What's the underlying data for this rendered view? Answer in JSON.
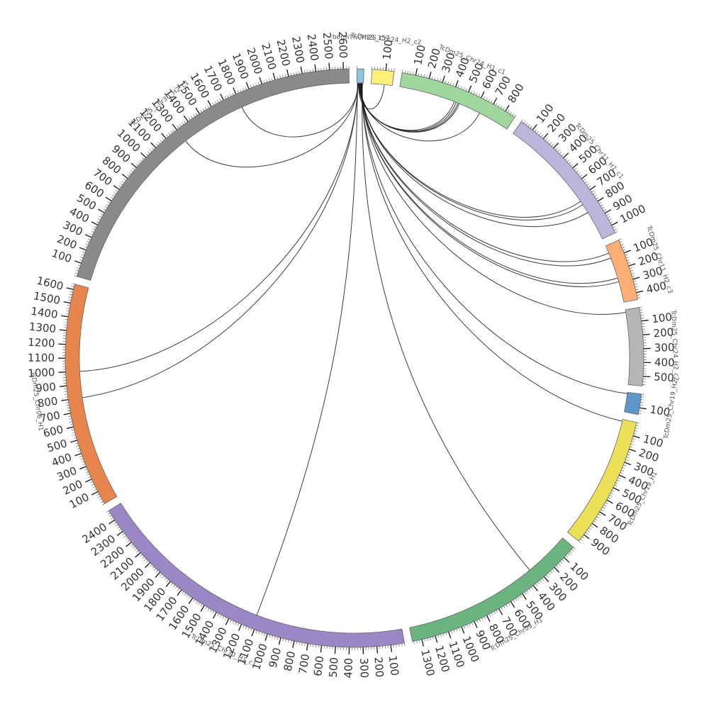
{
  "chart_data": {
    "type": "chord",
    "title": "",
    "segments": [
      {
        "name": "bermTnCH25_157",
        "length": 50,
        "color": "#8fc3de",
        "tick_step": 100,
        "label_step": 100
      },
      {
        "name": "TcDm25_Chr24_H2_c2",
        "length": 160,
        "color": "#fff07a",
        "tick_step": 20,
        "label_step": 100
      },
      {
        "name": "TcDm25_Chr24_H1_c1",
        "length": 880,
        "color": "#9ed69d",
        "tick_step": 20,
        "label_step": 100
      },
      {
        "name": "TcDm25_Chr11_H1_c1",
        "length": 1060,
        "color": "#bcb6dc",
        "tick_step": 20,
        "label_step": 100
      },
      {
        "name": "TcDm25_Chr11_H2_c3",
        "length": 450,
        "color": "#fdae74",
        "tick_step": 20,
        "label_step": 100
      },
      {
        "name": "TcDm25_Chr24_H2_c2",
        "length": 570,
        "color": "#b5b5b5",
        "tick_step": 20,
        "label_step": 100
      },
      {
        "name": "TcDm25_Chr19_H2",
        "length": 150,
        "color": "#5f97cb",
        "tick_step": 20,
        "label_step": 100
      },
      {
        "name": "TcDm25_Chr19_H1",
        "length": 960,
        "color": "#ebe057",
        "tick_step": 20,
        "label_step": 100
      },
      {
        "name": "TcDm25_Chr09_H1",
        "length": 1370,
        "color": "#6bb37f",
        "tick_step": 20,
        "label_step": 100
      },
      {
        "name": "TcDm25_Chr30_H1_c1",
        "length": 2480,
        "color": "#9b87c5",
        "tick_step": 20,
        "label_step": 100
      },
      {
        "name": "TcDm25_Chr06_H1",
        "length": 1640,
        "color": "#e8854f",
        "tick_step": 20,
        "label_step": 100
      },
      {
        "name": "TcDm25_Chr30_H2_c1",
        "length": 2640,
        "color": "#8a8a8a",
        "tick_step": 20,
        "label_step": 100
      }
    ],
    "links": [
      {
        "from": [
          0,
          15
        ],
        "to": [
          2,
          430
        ]
      },
      {
        "from": [
          0,
          18
        ],
        "to": [
          2,
          445
        ]
      },
      {
        "from": [
          0,
          20
        ],
        "to": [
          2,
          460
        ]
      },
      {
        "from": [
          0,
          22
        ],
        "to": [
          2,
          470
        ]
      },
      {
        "from": [
          0,
          26
        ],
        "to": [
          2,
          640
        ]
      },
      {
        "from": [
          0,
          12
        ],
        "to": [
          1,
          100
        ]
      },
      {
        "from": [
          0,
          28
        ],
        "to": [
          3,
          730
        ]
      },
      {
        "from": [
          0,
          30
        ],
        "to": [
          3,
          760
        ]
      },
      {
        "from": [
          0,
          32
        ],
        "to": [
          3,
          830
        ]
      },
      {
        "from": [
          0,
          33
        ],
        "to": [
          4,
          60
        ]
      },
      {
        "from": [
          0,
          34
        ],
        "to": [
          4,
          100
        ]
      },
      {
        "from": [
          0,
          35
        ],
        "to": [
          4,
          260
        ]
      },
      {
        "from": [
          0,
          36
        ],
        "to": [
          4,
          290
        ]
      },
      {
        "from": [
          0,
          38
        ],
        "to": [
          5,
          20
        ]
      },
      {
        "from": [
          0,
          40
        ],
        "to": [
          6,
          10
        ]
      },
      {
        "from": [
          0,
          41
        ],
        "to": [
          7,
          15
        ]
      },
      {
        "from": [
          0,
          42
        ],
        "to": [
          8,
          350
        ]
      },
      {
        "from": [
          0,
          5
        ],
        "to": [
          9,
          1120
        ]
      },
      {
        "from": [
          0,
          6
        ],
        "to": [
          10,
          800
        ]
      },
      {
        "from": [
          0,
          7
        ],
        "to": [
          10,
          1000
        ]
      },
      {
        "from": [
          0,
          8
        ],
        "to": [
          11,
          1300
        ]
      },
      {
        "from": [
          0,
          9
        ],
        "to": [
          11,
          1800
        ]
      }
    ]
  },
  "colors": {
    "tick": "#555555",
    "link": "#1a1a1a",
    "axis": "#777777"
  }
}
